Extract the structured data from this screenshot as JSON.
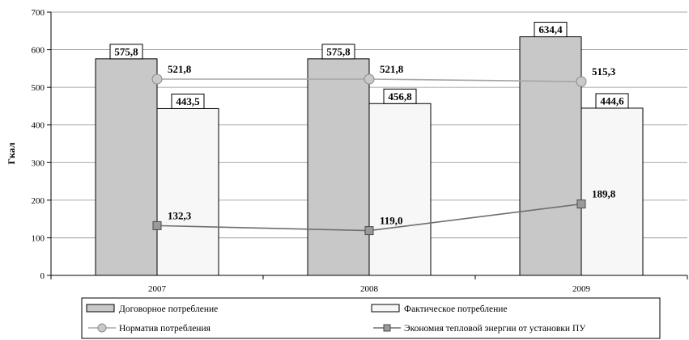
{
  "chart_data": {
    "type": "bar",
    "ylabel": "Гкал",
    "ylim": [
      0,
      700
    ],
    "yticks": [
      0,
      100,
      200,
      300,
      400,
      500,
      600,
      700
    ],
    "grid": true,
    "legend_position": "bottom",
    "categories": [
      "2007",
      "2008",
      "2009"
    ],
    "series": [
      {
        "name": "Договорное потребление",
        "kind": "bar",
        "color": "#c8c8c8",
        "values": [
          575.8,
          575.8,
          634.4
        ],
        "labels": [
          "575,8",
          "575,8",
          "634,4"
        ]
      },
      {
        "name": "Фактическое потребление",
        "kind": "bar",
        "color": "#f7f7f7",
        "values": [
          443.5,
          456.8,
          444.6
        ],
        "labels": [
          "443,5",
          "456,8",
          "444,6"
        ]
      },
      {
        "name": "Норматив потребления",
        "kind": "line",
        "marker": "circle",
        "color": "#a6a6a6",
        "values": [
          521.8,
          521.8,
          515.3
        ],
        "labels": [
          "521,8",
          "521,8",
          "515,3"
        ]
      },
      {
        "name": "Экономия тепловой энергии от установки ПУ",
        "kind": "line",
        "marker": "square",
        "color": "#6e6e6e",
        "values": [
          132.3,
          119.0,
          189.8
        ],
        "labels": [
          "132,3",
          "119,0",
          "189,8"
        ]
      }
    ]
  }
}
